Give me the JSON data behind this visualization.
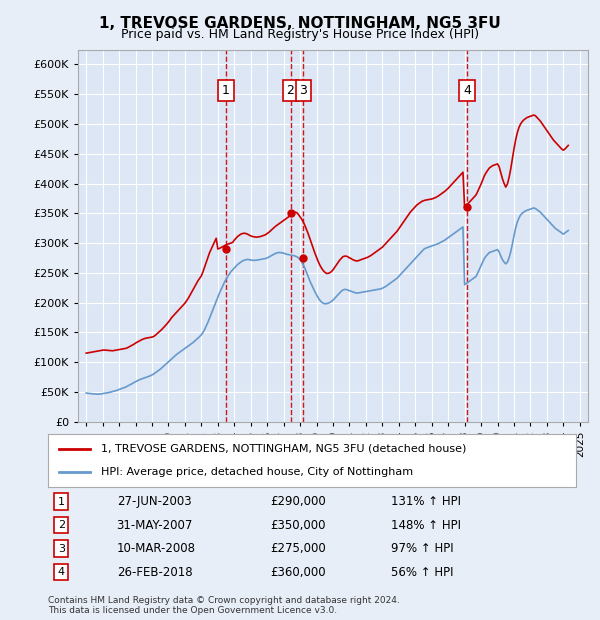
{
  "title": "1, TREVOSE GARDENS, NOTTINGHAM, NG5 3FU",
  "subtitle": "Price paid vs. HM Land Registry's House Price Index (HPI)",
  "background_color": "#e8eef8",
  "plot_bg_color": "#dce6f5",
  "ylim": [
    0,
    625000
  ],
  "yticks": [
    0,
    50000,
    100000,
    150000,
    200000,
    250000,
    300000,
    350000,
    400000,
    450000,
    500000,
    550000,
    600000
  ],
  "xlim_start": 1994.5,
  "xlim_end": 2025.5,
  "hpi_color": "#6699cc",
  "price_color": "#cc0000",
  "transactions": [
    {
      "num": 1,
      "date": "27-JUN-2003",
      "price": 290000,
      "pct": "131%",
      "year": 2003.49
    },
    {
      "num": 2,
      "date": "31-MAY-2007",
      "price": 350000,
      "pct": "148%",
      "year": 2007.42
    },
    {
      "num": 3,
      "date": "10-MAR-2008",
      "price": 275000,
      "pct": "97%",
      "year": 2008.19
    },
    {
      "num": 4,
      "date": "26-FEB-2018",
      "price": 360000,
      "pct": "56%",
      "year": 2018.15
    }
  ],
  "legend_label_price": "1, TREVOSE GARDENS, NOTTINGHAM, NG5 3FU (detached house)",
  "legend_label_hpi": "HPI: Average price, detached house, City of Nottingham",
  "footer1": "Contains HM Land Registry data © Crown copyright and database right 2024.",
  "footer2": "This data is licensed under the Open Government Licence v3.0.",
  "hpi_data_x": [
    1995.0,
    1995.1,
    1995.2,
    1995.3,
    1995.4,
    1995.5,
    1995.6,
    1995.7,
    1995.8,
    1995.9,
    1996.0,
    1996.1,
    1996.2,
    1996.3,
    1996.4,
    1996.5,
    1996.6,
    1996.7,
    1996.8,
    1996.9,
    1997.0,
    1997.1,
    1997.2,
    1997.3,
    1997.4,
    1997.5,
    1997.6,
    1997.7,
    1997.8,
    1997.9,
    1998.0,
    1998.1,
    1998.2,
    1998.3,
    1998.4,
    1998.5,
    1998.6,
    1998.7,
    1998.8,
    1998.9,
    1999.0,
    1999.1,
    1999.2,
    1999.3,
    1999.4,
    1999.5,
    1999.6,
    1999.7,
    1999.8,
    1999.9,
    2000.0,
    2000.1,
    2000.2,
    2000.3,
    2000.4,
    2000.5,
    2000.6,
    2000.7,
    2000.8,
    2000.9,
    2001.0,
    2001.1,
    2001.2,
    2001.3,
    2001.4,
    2001.5,
    2001.6,
    2001.7,
    2001.8,
    2001.9,
    2002.0,
    2002.1,
    2002.2,
    2002.3,
    2002.4,
    2002.5,
    2002.6,
    2002.7,
    2002.8,
    2002.9,
    2003.0,
    2003.1,
    2003.2,
    2003.3,
    2003.4,
    2003.5,
    2003.6,
    2003.7,
    2003.8,
    2003.9,
    2004.0,
    2004.1,
    2004.2,
    2004.3,
    2004.4,
    2004.5,
    2004.6,
    2004.7,
    2004.8,
    2004.9,
    2005.0,
    2005.1,
    2005.2,
    2005.3,
    2005.4,
    2005.5,
    2005.6,
    2005.7,
    2005.8,
    2005.9,
    2006.0,
    2006.1,
    2006.2,
    2006.3,
    2006.4,
    2006.5,
    2006.6,
    2006.7,
    2006.8,
    2006.9,
    2007.0,
    2007.1,
    2007.2,
    2007.3,
    2007.4,
    2007.5,
    2007.6,
    2007.7,
    2007.8,
    2007.9,
    2008.0,
    2008.1,
    2008.2,
    2008.3,
    2008.4,
    2008.5,
    2008.6,
    2008.7,
    2008.8,
    2008.9,
    2009.0,
    2009.1,
    2009.2,
    2009.3,
    2009.4,
    2009.5,
    2009.6,
    2009.7,
    2009.8,
    2009.9,
    2010.0,
    2010.1,
    2010.2,
    2010.3,
    2010.4,
    2010.5,
    2010.6,
    2010.7,
    2010.8,
    2010.9,
    2011.0,
    2011.1,
    2011.2,
    2011.3,
    2011.4,
    2011.5,
    2011.6,
    2011.7,
    2011.8,
    2011.9,
    2012.0,
    2012.1,
    2012.2,
    2012.3,
    2012.4,
    2012.5,
    2012.6,
    2012.7,
    2012.8,
    2012.9,
    2013.0,
    2013.1,
    2013.2,
    2013.3,
    2013.4,
    2013.5,
    2013.6,
    2013.7,
    2013.8,
    2013.9,
    2014.0,
    2014.1,
    2014.2,
    2014.3,
    2014.4,
    2014.5,
    2014.6,
    2014.7,
    2014.8,
    2014.9,
    2015.0,
    2015.1,
    2015.2,
    2015.3,
    2015.4,
    2015.5,
    2015.6,
    2015.7,
    2015.8,
    2015.9,
    2016.0,
    2016.1,
    2016.2,
    2016.3,
    2016.4,
    2016.5,
    2016.6,
    2016.7,
    2016.8,
    2016.9,
    2017.0,
    2017.1,
    2017.2,
    2017.3,
    2017.4,
    2017.5,
    2017.6,
    2017.7,
    2017.8,
    2017.9,
    2018.0,
    2018.1,
    2018.2,
    2018.3,
    2018.4,
    2018.5,
    2018.6,
    2018.7,
    2018.8,
    2018.9,
    2019.0,
    2019.1,
    2019.2,
    2019.3,
    2019.4,
    2019.5,
    2019.6,
    2019.7,
    2019.8,
    2019.9,
    2020.0,
    2020.1,
    2020.2,
    2020.3,
    2020.4,
    2020.5,
    2020.6,
    2020.7,
    2020.8,
    2020.9,
    2021.0,
    2021.1,
    2021.2,
    2021.3,
    2021.4,
    2021.5,
    2021.6,
    2021.7,
    2021.8,
    2021.9,
    2022.0,
    2022.1,
    2022.2,
    2022.3,
    2022.4,
    2022.5,
    2022.6,
    2022.7,
    2022.8,
    2022.9,
    2023.0,
    2023.1,
    2023.2,
    2023.3,
    2023.4,
    2023.5,
    2023.6,
    2023.7,
    2023.8,
    2023.9,
    2024.0,
    2024.1,
    2024.2,
    2024.3
  ],
  "hpi_data_y": [
    48000,
    47500,
    47200,
    47000,
    46800,
    46500,
    46200,
    46000,
    46200,
    46500,
    47000,
    47500,
    48000,
    48500,
    49000,
    49800,
    50500,
    51200,
    52000,
    52800,
    54000,
    55000,
    56000,
    57000,
    58000,
    59500,
    61000,
    62500,
    64000,
    65500,
    67000,
    68500,
    70000,
    71000,
    72000,
    73000,
    74000,
    75000,
    76000,
    77000,
    78500,
    80000,
    82000,
    84000,
    86000,
    88000,
    90500,
    93000,
    95500,
    98000,
    100500,
    103000,
    105500,
    108000,
    110500,
    113000,
    115000,
    117000,
    119000,
    121000,
    123000,
    125000,
    127000,
    129000,
    131000,
    133000,
    135500,
    138000,
    140500,
    143000,
    146000,
    150000,
    155000,
    161000,
    167000,
    174000,
    181000,
    188000,
    195000,
    202000,
    209000,
    216000,
    222000,
    228000,
    234000,
    239000,
    244000,
    248000,
    252000,
    255000,
    258000,
    261000,
    264000,
    266000,
    268000,
    270000,
    271000,
    272000,
    272500,
    272000,
    271500,
    271000,
    271000,
    271000,
    271500,
    272000,
    272500,
    273000,
    273500,
    274000,
    275000,
    276500,
    278000,
    279500,
    281000,
    282500,
    283500,
    284000,
    284000,
    283500,
    283000,
    282000,
    281000,
    280500,
    280000,
    279500,
    279000,
    278000,
    277000,
    275000,
    272000,
    268000,
    263000,
    257000,
    250000,
    243000,
    236000,
    230000,
    224000,
    218000,
    213000,
    208000,
    204000,
    201000,
    199000,
    198000,
    198000,
    199000,
    200000,
    202000,
    204000,
    207000,
    210000,
    213000,
    216000,
    219000,
    221000,
    222000,
    222000,
    221000,
    220000,
    219000,
    218000,
    217000,
    216000,
    216000,
    216500,
    217000,
    217500,
    218000,
    218500,
    219000,
    219500,
    220000,
    220500,
    221000,
    221500,
    222000,
    222500,
    223000,
    224000,
    225500,
    227000,
    229000,
    231000,
    233000,
    235000,
    237000,
    239000,
    241000,
    244000,
    247000,
    250000,
    253000,
    256000,
    259000,
    262000,
    265000,
    268000,
    271000,
    274000,
    277000,
    280000,
    283000,
    286000,
    289000,
    291000,
    292000,
    293000,
    294000,
    295000,
    296000,
    297000,
    298000,
    299000,
    300500,
    302000,
    303500,
    305000,
    307000,
    309000,
    311000,
    313000,
    315000,
    317000,
    319000,
    321000,
    323000,
    325000,
    327000,
    230000,
    232000,
    234000,
    236000,
    238000,
    240000,
    242000,
    244000,
    250000,
    256000,
    262000,
    268000,
    274000,
    278000,
    281000,
    284000,
    285000,
    286000,
    287000,
    288000,
    289000,
    285000,
    278000,
    272000,
    268000,
    265000,
    268000,
    275000,
    285000,
    298000,
    312000,
    325000,
    335000,
    342000,
    347000,
    350000,
    352000,
    354000,
    355000,
    356000,
    357000,
    358000,
    359000,
    358000,
    356000,
    354000,
    352000,
    349000,
    346000,
    343000,
    340000,
    337000,
    334000,
    331000,
    328000,
    325000,
    323000,
    321000,
    319000,
    317000,
    315000,
    317000,
    319000,
    321000
  ],
  "price_data_x": [
    1995.0,
    1995.1,
    1995.2,
    1995.3,
    1995.4,
    1995.5,
    1995.6,
    1995.7,
    1995.8,
    1995.9,
    1996.0,
    1996.1,
    1996.2,
    1996.3,
    1996.4,
    1996.5,
    1996.6,
    1996.7,
    1996.8,
    1996.9,
    1997.0,
    1997.1,
    1997.2,
    1997.3,
    1997.4,
    1997.5,
    1997.6,
    1997.7,
    1997.8,
    1997.9,
    1998.0,
    1998.1,
    1998.2,
    1998.3,
    1998.4,
    1998.5,
    1998.6,
    1998.7,
    1998.8,
    1998.9,
    1999.0,
    1999.1,
    1999.2,
    1999.3,
    1999.4,
    1999.5,
    1999.6,
    1999.7,
    1999.8,
    1999.9,
    2000.0,
    2000.1,
    2000.2,
    2000.3,
    2000.4,
    2000.5,
    2000.6,
    2000.7,
    2000.8,
    2000.9,
    2001.0,
    2001.1,
    2001.2,
    2001.3,
    2001.4,
    2001.5,
    2001.6,
    2001.7,
    2001.8,
    2001.9,
    2002.0,
    2002.1,
    2002.2,
    2002.3,
    2002.4,
    2002.5,
    2002.6,
    2002.7,
    2002.8,
    2002.9,
    2003.0,
    2003.1,
    2003.2,
    2003.3,
    2003.4,
    2003.5,
    2003.6,
    2003.7,
    2003.8,
    2003.9,
    2004.0,
    2004.1,
    2004.2,
    2004.3,
    2004.4,
    2004.5,
    2004.6,
    2004.7,
    2004.8,
    2004.9,
    2005.0,
    2005.1,
    2005.2,
    2005.3,
    2005.4,
    2005.5,
    2005.6,
    2005.7,
    2005.8,
    2005.9,
    2006.0,
    2006.1,
    2006.2,
    2006.3,
    2006.4,
    2006.5,
    2006.6,
    2006.7,
    2006.8,
    2006.9,
    2007.0,
    2007.1,
    2007.2,
    2007.3,
    2007.4,
    2007.5,
    2007.6,
    2007.7,
    2007.8,
    2007.9,
    2008.0,
    2008.1,
    2008.2,
    2008.3,
    2008.4,
    2008.5,
    2008.6,
    2008.7,
    2008.8,
    2008.9,
    2009.0,
    2009.1,
    2009.2,
    2009.3,
    2009.4,
    2009.5,
    2009.6,
    2009.7,
    2009.8,
    2009.9,
    2010.0,
    2010.1,
    2010.2,
    2010.3,
    2010.4,
    2010.5,
    2010.6,
    2010.7,
    2010.8,
    2010.9,
    2011.0,
    2011.1,
    2011.2,
    2011.3,
    2011.4,
    2011.5,
    2011.6,
    2011.7,
    2011.8,
    2011.9,
    2012.0,
    2012.1,
    2012.2,
    2012.3,
    2012.4,
    2012.5,
    2012.6,
    2012.7,
    2012.8,
    2012.9,
    2013.0,
    2013.1,
    2013.2,
    2013.3,
    2013.4,
    2013.5,
    2013.6,
    2013.7,
    2013.8,
    2013.9,
    2014.0,
    2014.1,
    2014.2,
    2014.3,
    2014.4,
    2014.5,
    2014.6,
    2014.7,
    2014.8,
    2014.9,
    2015.0,
    2015.1,
    2015.2,
    2015.3,
    2015.4,
    2015.5,
    2015.6,
    2015.7,
    2015.8,
    2015.9,
    2016.0,
    2016.1,
    2016.2,
    2016.3,
    2016.4,
    2016.5,
    2016.6,
    2016.7,
    2016.8,
    2016.9,
    2017.0,
    2017.1,
    2017.2,
    2017.3,
    2017.4,
    2017.5,
    2017.6,
    2017.7,
    2017.8,
    2017.9,
    2018.0,
    2018.1,
    2018.2,
    2018.3,
    2018.4,
    2018.5,
    2018.6,
    2018.7,
    2018.8,
    2018.9,
    2019.0,
    2019.1,
    2019.2,
    2019.3,
    2019.4,
    2019.5,
    2019.6,
    2019.7,
    2019.8,
    2019.9,
    2020.0,
    2020.1,
    2020.2,
    2020.3,
    2020.4,
    2020.5,
    2020.6,
    2020.7,
    2020.8,
    2020.9,
    2021.0,
    2021.1,
    2021.2,
    2021.3,
    2021.4,
    2021.5,
    2021.6,
    2021.7,
    2021.8,
    2021.9,
    2022.0,
    2022.1,
    2022.2,
    2022.3,
    2022.4,
    2022.5,
    2022.6,
    2022.7,
    2022.8,
    2022.9,
    2023.0,
    2023.1,
    2023.2,
    2023.3,
    2023.4,
    2023.5,
    2023.6,
    2023.7,
    2023.8,
    2023.9,
    2024.0,
    2024.1,
    2024.2,
    2024.3
  ],
  "price_data_y": [
    115000,
    115500,
    116000,
    116500,
    117000,
    117500,
    118000,
    118500,
    119000,
    119500,
    120000,
    120200,
    120000,
    119800,
    119500,
    119200,
    119000,
    119500,
    120000,
    120500,
    121000,
    121500,
    122000,
    122500,
    123000,
    124000,
    125500,
    127000,
    128500,
    130000,
    132000,
    133500,
    135000,
    136500,
    138000,
    139000,
    140000,
    140500,
    141000,
    141500,
    142000,
    143000,
    145000,
    147500,
    150000,
    152500,
    155000,
    158000,
    161000,
    164000,
    167500,
    171000,
    175000,
    178000,
    181000,
    184000,
    187000,
    190000,
    193000,
    196000,
    199000,
    203000,
    207000,
    212000,
    217000,
    222000,
    227000,
    232000,
    237000,
    241000,
    245000,
    252000,
    260000,
    268000,
    276000,
    284000,
    290000,
    296000,
    302000,
    308000,
    290000,
    291000,
    292500,
    294000,
    295500,
    297000,
    298000,
    299000,
    300000,
    301000,
    305000,
    308000,
    311000,
    313000,
    315000,
    316000,
    316500,
    316000,
    315000,
    313500,
    312000,
    311000,
    310500,
    310000,
    310000,
    310500,
    311000,
    312000,
    313000,
    314000,
    316000,
    318000,
    320500,
    323000,
    325500,
    328000,
    330000,
    332000,
    334000,
    336000,
    338000,
    340000,
    342000,
    344000,
    346000,
    349000,
    351000,
    352000,
    351000,
    348000,
    344000,
    340000,
    335000,
    329000,
    322000,
    315000,
    307000,
    299000,
    291000,
    283000,
    276000,
    269000,
    263000,
    258000,
    254000,
    251000,
    249000,
    249000,
    250000,
    252000,
    255000,
    259000,
    263000,
    267000,
    271000,
    274000,
    277000,
    278000,
    278000,
    277000,
    275000,
    274000,
    272000,
    271000,
    270000,
    270000,
    271000,
    272000,
    273000,
    274000,
    275000,
    276000,
    277500,
    279000,
    281000,
    283000,
    285000,
    287000,
    289000,
    291000,
    293000,
    296000,
    299000,
    302000,
    305000,
    308000,
    311000,
    314000,
    317000,
    320000,
    324000,
    328000,
    332000,
    336000,
    340000,
    344000,
    348000,
    352000,
    355000,
    358000,
    361000,
    364000,
    366000,
    368000,
    370000,
    371000,
    372000,
    372500,
    373000,
    373500,
    374000,
    375000,
    376000,
    377500,
    379000,
    381000,
    383000,
    385000,
    387000,
    389500,
    392000,
    395000,
    398000,
    401000,
    404000,
    407000,
    410000,
    413000,
    416000,
    419000,
    360000,
    363000,
    366000,
    369000,
    372000,
    375000,
    378000,
    381000,
    387000,
    393000,
    399000,
    406000,
    413000,
    418000,
    422000,
    426000,
    428000,
    430000,
    431000,
    432000,
    433000,
    428000,
    418000,
    408000,
    400000,
    394000,
    399000,
    410000,
    424000,
    441000,
    458000,
    473000,
    485000,
    494000,
    500000,
    504000,
    507000,
    509000,
    511000,
    512000,
    513000,
    514000,
    515000,
    514000,
    511000,
    508000,
    505000,
    501000,
    497000,
    493000,
    489000,
    485000,
    481000,
    477000,
    473000,
    470000,
    467000,
    464000,
    461000,
    458000,
    456000,
    458000,
    461000,
    464000
  ]
}
